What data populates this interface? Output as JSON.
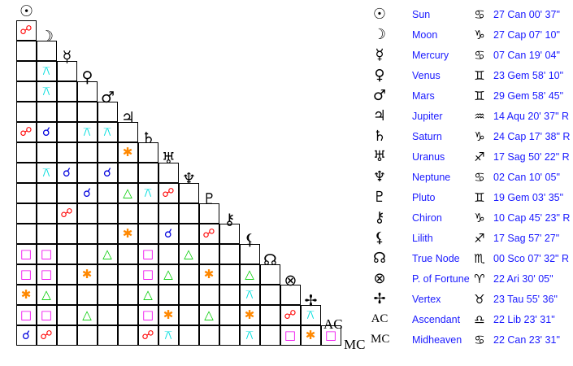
{
  "aspect_styles": {
    "opp": {
      "glyph": "☍",
      "color": "#ff0000"
    },
    "conj": {
      "glyph": "☌",
      "color": "#0000dd"
    },
    "qx": {
      "glyph": "⚻",
      "color": "#00dddd"
    },
    "sext": {
      "glyph": "✱",
      "color": "#ff8800"
    },
    "tri": {
      "glyph": "△",
      "color": "#00cc00"
    },
    "sq": {
      "glyph": "□",
      "color": "#ee00ee"
    }
  },
  "planets": [
    {
      "glyph": "☉",
      "icon": "sun-icon",
      "name": "Sun",
      "sign": "♋",
      "sign_icon": "cancer-icon",
      "position": "27 Can 00' 37\""
    },
    {
      "glyph": "☽",
      "icon": "moon-icon",
      "name": "Moon",
      "sign": "♑",
      "sign_icon": "capricorn-icon",
      "position": "27 Cap 07' 10\""
    },
    {
      "glyph": "☿",
      "icon": "mercury-icon",
      "name": "Mercury",
      "sign": "♋",
      "sign_icon": "cancer-icon",
      "position": "07 Can 19' 04\""
    },
    {
      "glyph": "♀",
      "icon": "venus-icon",
      "name": "Venus",
      "sign": "♊",
      "sign_icon": "gemini-icon",
      "position": "23 Gem 58' 10\""
    },
    {
      "glyph": "♂",
      "icon": "mars-icon",
      "name": "Mars",
      "sign": "♊",
      "sign_icon": "gemini-icon",
      "position": "29 Gem 58' 45\""
    },
    {
      "glyph": "♃",
      "icon": "jupiter-icon",
      "name": "Jupiter",
      "sign": "♒",
      "sign_icon": "aquarius-icon",
      "position": "14 Aqu 20' 37\" R"
    },
    {
      "glyph": "♄",
      "icon": "saturn-icon",
      "name": "Saturn",
      "sign": "♑",
      "sign_icon": "capricorn-icon",
      "position": "24 Cap 17' 38\" R"
    },
    {
      "glyph": "♅",
      "icon": "uranus-icon",
      "name": "Uranus",
      "sign": "♐",
      "sign_icon": "sagittarius-icon",
      "position": "17 Sag 50' 22\" R"
    },
    {
      "glyph": "♆",
      "icon": "neptune-icon",
      "name": "Neptune",
      "sign": "♋",
      "sign_icon": "cancer-icon",
      "position": "02 Can 10' 05\""
    },
    {
      "glyph": "♇",
      "icon": "pluto-icon",
      "name": "Pluto",
      "sign": "♊",
      "sign_icon": "gemini-icon",
      "position": "19 Gem 03' 35\""
    },
    {
      "glyph": "⚷",
      "icon": "chiron-icon",
      "name": "Chiron",
      "sign": "♑",
      "sign_icon": "capricorn-icon",
      "position": "10 Cap 45' 23\" R"
    },
    {
      "glyph": "⚸",
      "icon": "lilith-icon",
      "name": "Lilith",
      "sign": "♐",
      "sign_icon": "sagittarius-icon",
      "position": "17 Sag 57' 27\""
    },
    {
      "glyph": "☊",
      "icon": "true-node-icon",
      "name": "True Node",
      "sign": "♏",
      "sign_icon": "scorpio-icon",
      "position": "00 Sco 07' 32\" R"
    },
    {
      "glyph": "⊗",
      "icon": "part-of-fortune-icon",
      "name": "P. of Fortune",
      "sign": "♈",
      "sign_icon": "aries-icon",
      "position": "22 Ari 30' 05\""
    },
    {
      "glyph": "✢",
      "icon": "vertex-icon",
      "name": "Vertex",
      "sign": "♉",
      "sign_icon": "taurus-icon",
      "position": "23 Tau 55' 36\""
    },
    {
      "glyph": "AC",
      "icon": "ascendant-icon",
      "name": "Ascendant",
      "sign": "♎",
      "sign_icon": "libra-icon",
      "position": "22 Lib 23' 31\""
    },
    {
      "glyph": "MC",
      "icon": "midheaven-icon",
      "name": "Midheaven",
      "sign": "♋",
      "sign_icon": "cancer-icon",
      "position": "22 Can 23' 31\""
    }
  ],
  "aspect_grid": [
    [],
    [
      "opp"
    ],
    [
      "",
      ""
    ],
    [
      "",
      "qx",
      ""
    ],
    [
      "",
      "qx",
      "",
      ""
    ],
    [
      "",
      "",
      "",
      "",
      ""
    ],
    [
      "opp",
      "conj",
      "",
      "qx",
      "qx",
      ""
    ],
    [
      "",
      "",
      "",
      "",
      "",
      "sext",
      ""
    ],
    [
      "",
      "qx",
      "conj",
      "",
      "conj",
      "",
      "",
      ""
    ],
    [
      "",
      "",
      "",
      "conj",
      "",
      "tri",
      "qx",
      "opp",
      ""
    ],
    [
      "",
      "",
      "opp",
      "",
      "",
      "",
      "",
      "",
      "",
      ""
    ],
    [
      "",
      "",
      "",
      "",
      "",
      "sext",
      "",
      "conj",
      "",
      "opp",
      ""
    ],
    [
      "sq",
      "sq",
      "",
      "",
      "tri",
      "",
      "sq",
      "",
      "tri",
      "",
      "",
      ""
    ],
    [
      "sq",
      "sq",
      "",
      "sext",
      "",
      "",
      "sq",
      "tri",
      "",
      "sext",
      "",
      "tri",
      ""
    ],
    [
      "sext",
      "tri",
      "",
      "",
      "",
      "",
      "tri",
      "",
      "",
      "",
      "",
      "qx",
      "",
      ""
    ],
    [
      "sq",
      "sq",
      "",
      "tri",
      "",
      "",
      "sq",
      "sext",
      "",
      "tri",
      "",
      "sext",
      "",
      "opp",
      "qx"
    ],
    [
      "conj",
      "opp",
      "",
      "",
      "",
      "",
      "opp",
      "qx",
      "",
      "",
      "",
      "qx",
      "",
      "sq",
      "sext",
      "sq"
    ]
  ]
}
